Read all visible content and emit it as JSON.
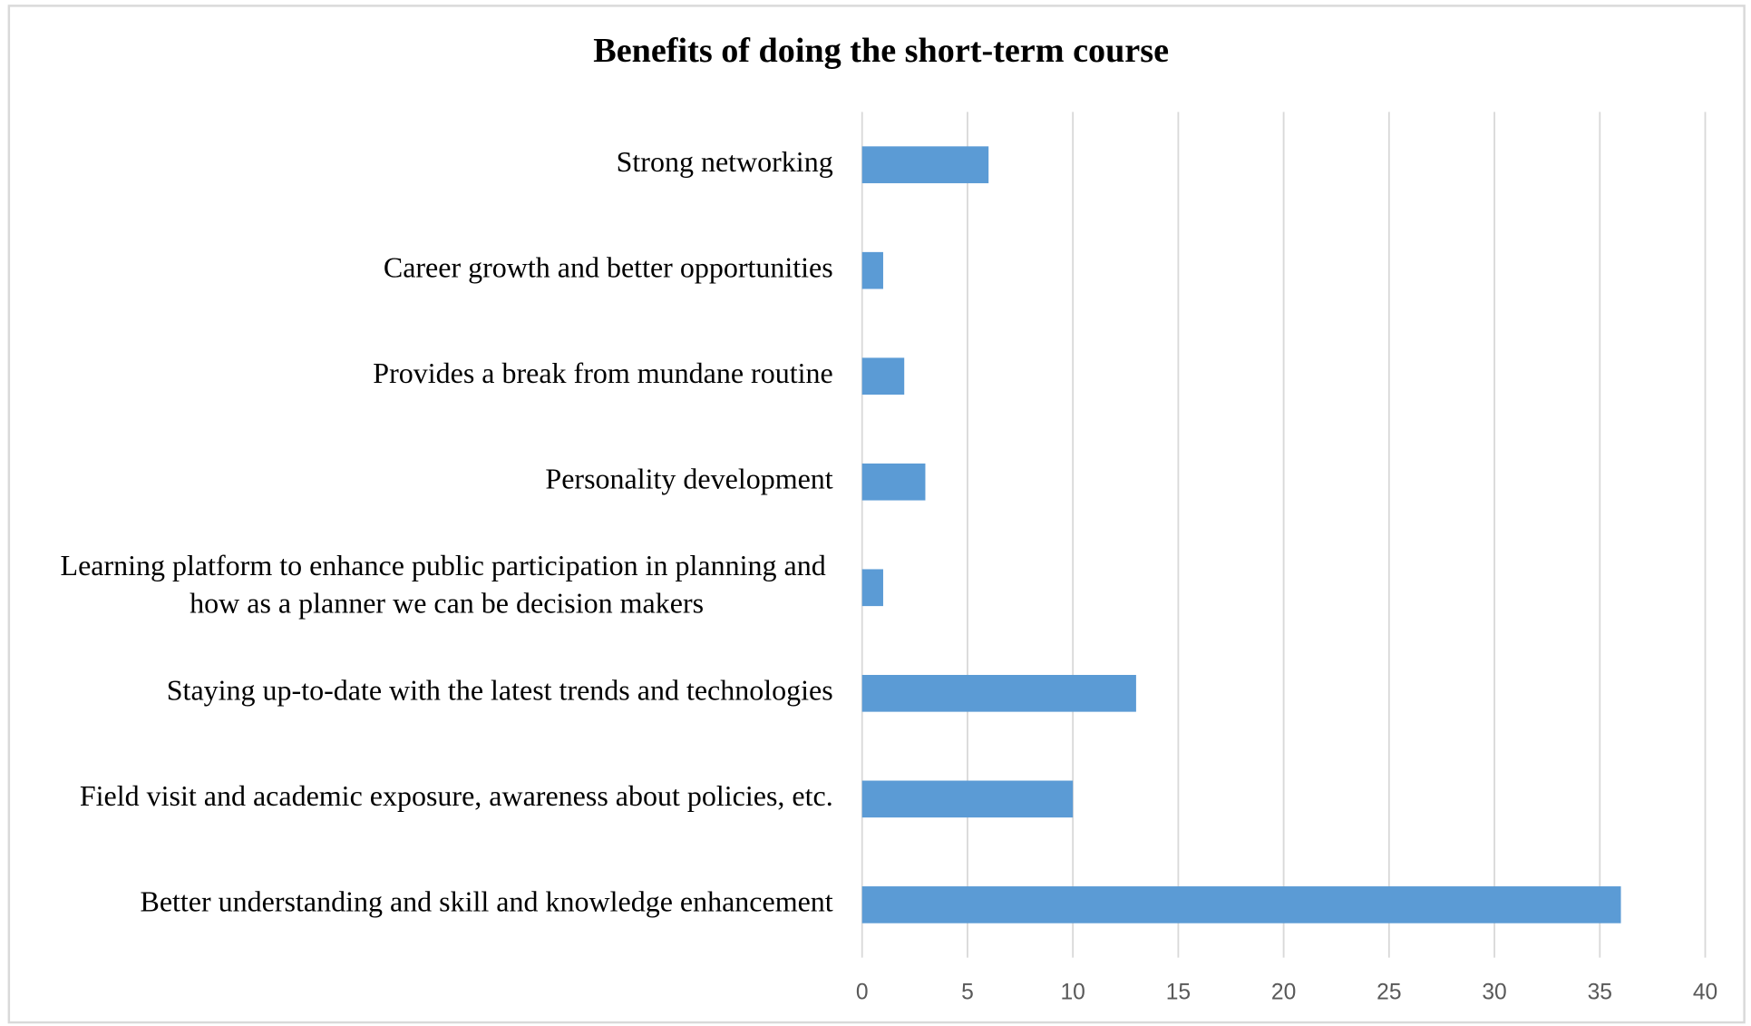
{
  "chart_data": {
    "type": "barh",
    "title": "Benefits of doing the short-term course",
    "categories": [
      "Strong networking",
      "Career growth and better opportunities",
      "Provides a break from mundane routine",
      "Personality development",
      "Learning platform to enhance public participation in planning and how as a planner we can be decision makers",
      "Staying up-to-date with the latest trends and technologies",
      "Field visit and academic exposure, awareness about policies, etc.",
      "Better understanding and skill and knowledge enhancement"
    ],
    "values": [
      6,
      1,
      2,
      3,
      1,
      13,
      10,
      36
    ],
    "color": "#5b9bd5",
    "xlim": [
      0,
      40
    ],
    "xticks": [
      0,
      5,
      10,
      15,
      20,
      25,
      30,
      35,
      40
    ],
    "grid": true
  }
}
